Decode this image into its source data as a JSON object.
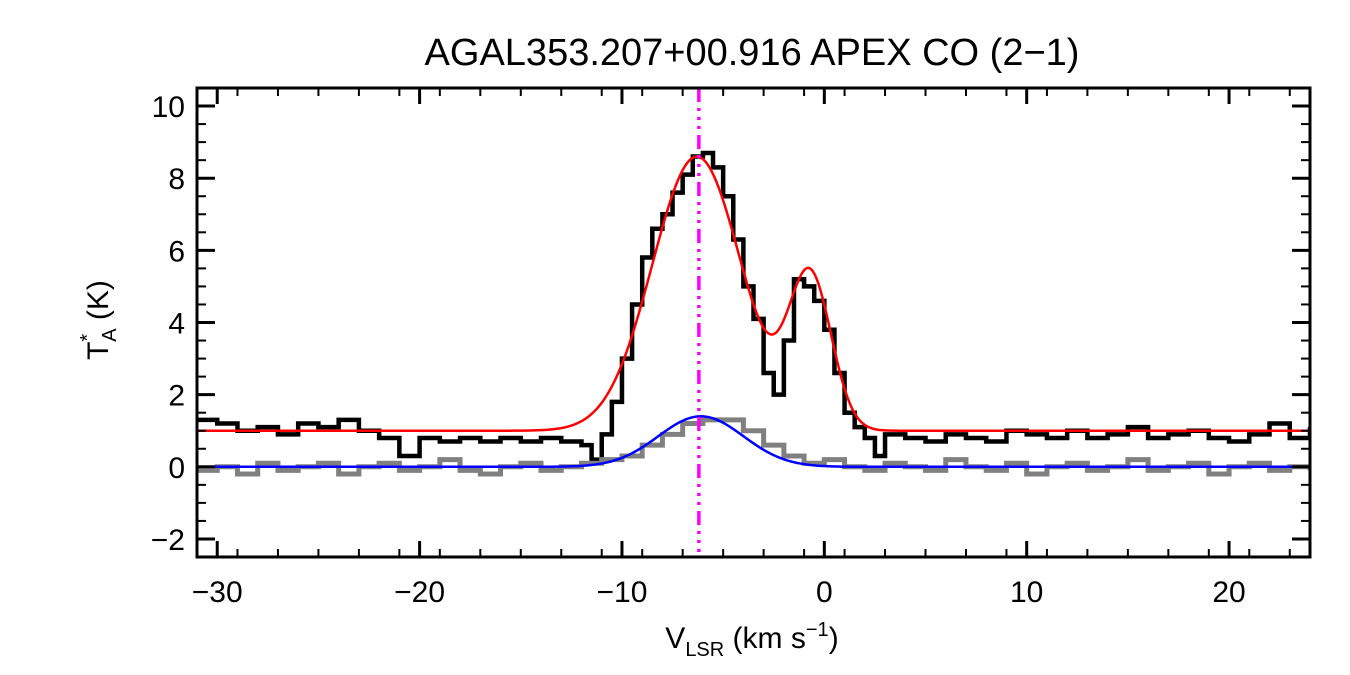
{
  "chart_data": {
    "type": "line",
    "title": "AGAL353.207+00.916  APEX CO (2−1)",
    "xlabel": {
      "main": "V",
      "sub": "LSR",
      "rest": " (km s",
      "sup": "−1",
      "end": ")"
    },
    "ylabel": {
      "main": "T",
      "sup": "*",
      "sub": "A",
      "rest": " (K)"
    },
    "xlim": [
      -31,
      24
    ],
    "ylim": [
      -2.5,
      10.5
    ],
    "x_ticks": [
      -30,
      -20,
      -10,
      0,
      10,
      20
    ],
    "x_tick_labels": [
      "−30",
      "−20",
      "−10",
      "0",
      "10",
      "20"
    ],
    "y_ticks": [
      -2,
      0,
      2,
      4,
      6,
      8,
      10
    ],
    "y_tick_labels": [
      "−2",
      "0",
      "2",
      "4",
      "6",
      "8",
      "10"
    ],
    "reference_line_x": -6.2,
    "series": [
      {
        "color": "#000000",
        "style": "step",
        "x": [
          -31,
          -30,
          -29,
          -28,
          -27,
          -26,
          -25,
          -24,
          -23,
          -22,
          -21,
          -20,
          -19,
          -18,
          -17,
          -16,
          -15,
          -14,
          -13,
          -12,
          -11.5,
          -11,
          -10.5,
          -10,
          -9.5,
          -9,
          -8.5,
          -8,
          -7.5,
          -7,
          -6.5,
          -6,
          -5.5,
          -5,
          -4.5,
          -4,
          -3.5,
          -3,
          -2.5,
          -2,
          -1.5,
          -1,
          -0.5,
          0,
          0.5,
          1,
          1.5,
          2,
          2.5,
          3,
          4,
          5,
          6,
          7,
          8,
          9,
          10,
          11,
          12,
          13,
          14,
          15,
          16,
          17,
          18,
          19,
          20,
          21,
          22,
          23,
          24
        ],
        "y": [
          1.3,
          1.2,
          1.0,
          1.1,
          0.9,
          1.2,
          1.1,
          1.3,
          1.0,
          0.8,
          0.3,
          0.8,
          0.7,
          0.8,
          0.7,
          0.8,
          0.7,
          0.8,
          0.7,
          0.6,
          0.2,
          0.9,
          1.8,
          3.0,
          4.5,
          5.8,
          6.6,
          7.0,
          7.6,
          8.1,
          8.6,
          8.7,
          8.3,
          7.5,
          6.3,
          5.0,
          4.1,
          2.6,
          2.0,
          3.5,
          5.2,
          5.0,
          4.6,
          3.8,
          2.6,
          1.5,
          1.1,
          0.8,
          0.3,
          0.9,
          0.8,
          0.7,
          0.9,
          0.8,
          0.7,
          1.0,
          0.9,
          0.8,
          1.0,
          0.8,
          0.9,
          1.1,
          0.8,
          0.9,
          1.0,
          0.8,
          0.7,
          0.9,
          1.2,
          0.8,
          1.1
        ]
      },
      {
        "color": "#808080",
        "style": "step",
        "x": [
          -31,
          -30,
          -29,
          -28,
          -27,
          -26,
          -25,
          -24,
          -23,
          -22,
          -21,
          -20,
          -19,
          -18,
          -17,
          -16,
          -15,
          -14,
          -13,
          -12,
          -11,
          -10,
          -9,
          -8,
          -7,
          -6,
          -5,
          -4,
          -3,
          -2,
          -1,
          0,
          1,
          2,
          3,
          4,
          5,
          6,
          7,
          8,
          9,
          10,
          11,
          12,
          13,
          14,
          15,
          16,
          17,
          18,
          19,
          20,
          21,
          22,
          23,
          24
        ],
        "y": [
          -0.1,
          0.0,
          -0.2,
          0.1,
          -0.1,
          0.0,
          0.1,
          -0.2,
          0.0,
          0.1,
          -0.1,
          0.0,
          0.2,
          -0.1,
          -0.2,
          0.0,
          0.1,
          -0.1,
          0.0,
          0.1,
          0.2,
          0.3,
          0.6,
          0.9,
          1.2,
          1.3,
          1.3,
          1.0,
          0.6,
          0.3,
          0.1,
          0.2,
          0.0,
          -0.1,
          0.1,
          0.0,
          -0.1,
          0.2,
          0.0,
          -0.1,
          0.1,
          -0.2,
          0.0,
          0.1,
          -0.1,
          0.0,
          0.2,
          -0.1,
          0.0,
          0.1,
          -0.2,
          0.0,
          0.1,
          -0.1,
          0.0,
          -0.1
        ]
      },
      {
        "color": "#ff0000",
        "style": "line",
        "fit": {
          "baseline": 1.0,
          "components": [
            {
              "amp": 7.6,
              "center": -6.3,
              "sigma": 2.2
            },
            {
              "amp": 4.2,
              "center": -0.7,
              "sigma": 1.05
            }
          ]
        },
        "x_range": [
          -31,
          24
        ]
      },
      {
        "color": "#0000ff",
        "style": "line",
        "fit": {
          "baseline": 0.0,
          "components": [
            {
              "amp": 1.4,
              "center": -6.1,
              "sigma": 2.1
            }
          ]
        },
        "x_range": [
          -31,
          24
        ]
      }
    ]
  }
}
